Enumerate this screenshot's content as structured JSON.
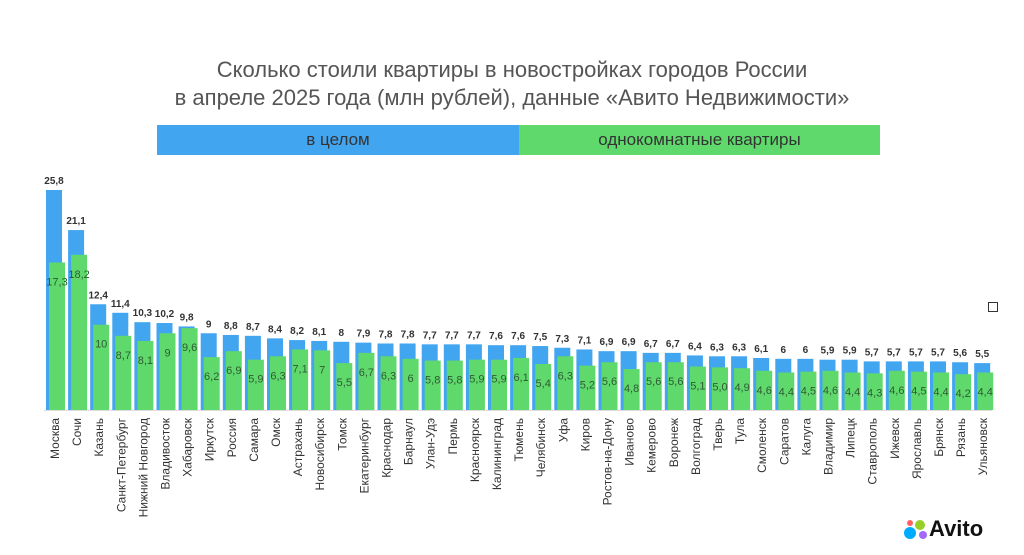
{
  "chart_data": {
    "type": "bar",
    "title": [
      "Сколько стоили квартиры в новостройках городов России",
      "в апреле 2025 года (млн рублей), данные «Авито Недвижимости»"
    ],
    "xlabel": "",
    "ylabel": "",
    "ylim": [
      0,
      26
    ],
    "legend_placement": "top",
    "categories": [
      "Москва",
      "Сочи",
      "Казань",
      "Санкт-Петербург",
      "Нижний Новгород",
      "Владивосток",
      "Хабаровск",
      "Иркутск",
      "Россия",
      "Самара",
      "Омск",
      "Астрахань",
      "Новосибирск",
      "Томск",
      "Екатеринбург",
      "Краснодар",
      "Барнаул",
      "Улан-Удэ",
      "Пермь",
      "Красноярск",
      "Калининград",
      "Тюмень",
      "Челябинск",
      "Уфа",
      "Киров",
      "Ростов-на-Дону",
      "Иваново",
      "Кемерово",
      "Воронеж",
      "Волгоград",
      "Тверь",
      "Тула",
      "Смоленск",
      "Саратов",
      "Калуга",
      "Владимир",
      "Липецк",
      "Ставрополь",
      "Ижевск",
      "Ярославль",
      "Брянск",
      "Рязань",
      "Ульяновск"
    ],
    "series": [
      {
        "name": "в целом",
        "color": "#42a5f0",
        "labels": [
          "25,8",
          "21,1",
          "12,4",
          "11,4",
          "10,3",
          "10,2",
          "9,8",
          "9",
          "8,8",
          "8,7",
          "8,4",
          "8,2",
          "8,1",
          "8",
          "7,9",
          "7,8",
          "7,8",
          "7,7",
          "7,7",
          "7,7",
          "7,6",
          "7,6",
          "7,5",
          "7,3",
          "7,1",
          "6,9",
          "6,9",
          "6,7",
          "6,7",
          "6,4",
          "6,3",
          "6,3",
          "6,1",
          "6",
          "6",
          "5,9",
          "5,9",
          "5,7",
          "5,7",
          "5,7",
          "5,7",
          "5,6",
          "5,5"
        ],
        "values": [
          25.8,
          21.1,
          12.4,
          11.4,
          10.3,
          10.2,
          9.8,
          9,
          8.8,
          8.7,
          8.4,
          8.2,
          8.1,
          8,
          7.9,
          7.8,
          7.8,
          7.7,
          7.7,
          7.7,
          7.6,
          7.6,
          7.5,
          7.3,
          7.1,
          6.9,
          6.9,
          6.7,
          6.7,
          6.4,
          6.3,
          6.3,
          6.1,
          6,
          6,
          5.9,
          5.9,
          5.7,
          5.7,
          5.7,
          5.7,
          5.6,
          5.5
        ]
      },
      {
        "name": "однокомнатные квартиры",
        "color": "#5fd96c",
        "labels": [
          "17,3",
          "18,2",
          "10",
          "8,7",
          "8,1",
          "9",
          "9,6",
          "6,2",
          "6,9",
          "5,9",
          "6,3",
          "7,1",
          "7",
          "5,5",
          "6,7",
          "6,3",
          "6",
          "5,8",
          "5,8",
          "5,9",
          "5,9",
          "6,1",
          "5,4",
          "6,3",
          "5,2",
          "5,6",
          "4,8",
          "5,6",
          "5,6",
          "5,1",
          "5,0",
          "4,9",
          "4,6",
          "4,4",
          "4,5",
          "4,6",
          "4,4",
          "4,3",
          "4,6",
          "4,5",
          "4,4",
          "4,2",
          "4,4"
        ],
        "values": [
          17.3,
          18.2,
          10,
          8.7,
          8.1,
          9,
          9.6,
          6.2,
          6.9,
          5.9,
          6.3,
          7.1,
          7,
          5.5,
          6.7,
          6.3,
          6,
          5.8,
          5.8,
          5.9,
          5.9,
          6.1,
          5.4,
          6.3,
          5.2,
          5.6,
          4.8,
          5.6,
          5.6,
          5.1,
          5.0,
          4.9,
          4.6,
          4.4,
          4.5,
          4.6,
          4.4,
          4.3,
          4.6,
          4.5,
          4.4,
          4.2,
          4.4
        ]
      }
    ]
  },
  "logo": {
    "text": "Avito"
  }
}
